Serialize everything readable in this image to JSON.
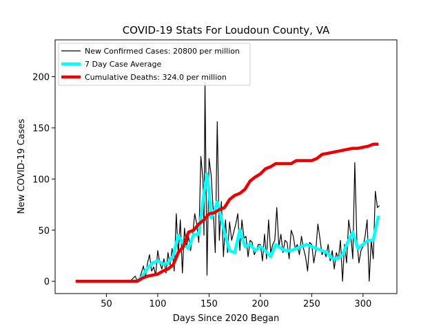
{
  "chart_data": {
    "type": "line",
    "title": "COVID-19 Stats For Loudoun County, VA",
    "xlabel": "Days Since 2020 Began",
    "ylabel": "New COVID-19 Cases",
    "xlim": [
      0,
      333
    ],
    "ylim": [
      -12,
      236
    ],
    "xticks": [
      50,
      100,
      150,
      200,
      250,
      300
    ],
    "yticks": [
      0,
      50,
      100,
      150,
      200
    ],
    "grid": false,
    "legend_position": "top-left",
    "series": [
      {
        "name": "New Confirmed Cases: 20800 per million",
        "color": "#000000",
        "x": [
          20,
          40,
          60,
          70,
          74,
          76,
          78,
          80,
          82,
          84,
          86,
          88,
          90,
          92,
          94,
          96,
          98,
          100,
          102,
          104,
          106,
          108,
          110,
          112,
          114,
          116,
          118,
          120,
          122,
          124,
          126,
          128,
          130,
          132,
          134,
          136,
          138,
          140,
          142,
          144,
          145,
          146,
          148,
          150,
          152,
          154,
          156,
          158,
          160,
          162,
          164,
          166,
          168,
          170,
          172,
          174,
          176,
          178,
          180,
          182,
          184,
          186,
          188,
          190,
          192,
          194,
          196,
          198,
          200,
          202,
          204,
          206,
          208,
          210,
          212,
          214,
          216,
          218,
          220,
          222,
          224,
          226,
          228,
          230,
          232,
          234,
          236,
          238,
          240,
          242,
          244,
          246,
          248,
          250,
          252,
          254,
          256,
          258,
          260,
          262,
          264,
          266,
          268,
          270,
          272,
          274,
          276,
          278,
          280,
          282,
          284,
          286,
          288,
          290,
          292,
          294,
          296,
          298,
          300,
          302,
          304,
          306,
          308,
          310,
          312,
          314,
          316
        ],
        "y": [
          0,
          0,
          0,
          0,
          1,
          3,
          5,
          0,
          2,
          8,
          15,
          4,
          18,
          26,
          10,
          14,
          6,
          30,
          18,
          12,
          22,
          8,
          28,
          16,
          32,
          10,
          66,
          26,
          60,
          8,
          52,
          34,
          44,
          30,
          46,
          66,
          56,
          38,
          122,
          100,
          45,
          195,
          6,
          120,
          104,
          70,
          28,
          156,
          40,
          78,
          24,
          60,
          28,
          58,
          40,
          48,
          56,
          66,
          30,
          60,
          42,
          44,
          24,
          40,
          38,
          26,
          30,
          36,
          36,
          20,
          46,
          22,
          60,
          28,
          36,
          40,
          72,
          34,
          46,
          28,
          40,
          38,
          22,
          50,
          44,
          32,
          36,
          26,
          44,
          32,
          24,
          10,
          38,
          36,
          18,
          30,
          56,
          42,
          26,
          30,
          24,
          36,
          20,
          30,
          12,
          28,
          22,
          40,
          0,
          36,
          18,
          60,
          46,
          22,
          116,
          40,
          18,
          30,
          34,
          44,
          60,
          0,
          40,
          22,
          88,
          72,
          74
        ],
        "line_width": 1.2
      },
      {
        "name": "7 Day Case Average",
        "color": "#00ffff",
        "x": [
          80,
          85,
          90,
          95,
          100,
          105,
          110,
          115,
          120,
          125,
          130,
          135,
          140,
          145,
          148,
          150,
          152,
          155,
          158,
          160,
          165,
          170,
          175,
          180,
          185,
          190,
          195,
          200,
          205,
          210,
          215,
          220,
          225,
          230,
          235,
          240,
          245,
          250,
          255,
          260,
          265,
          270,
          275,
          280,
          285,
          290,
          295,
          300,
          305,
          310,
          315
        ],
        "y": [
          0,
          5,
          13,
          18,
          20,
          17,
          18,
          25,
          45,
          36,
          32,
          46,
          46,
          86,
          105,
          88,
          62,
          68,
          78,
          70,
          48,
          30,
          28,
          50,
          34,
          36,
          30,
          34,
          30,
          24,
          36,
          32,
          30,
          30,
          32,
          34,
          36,
          34,
          32,
          30,
          28,
          22,
          22,
          26,
          38,
          48,
          32,
          36,
          40,
          40,
          64
        ],
        "line_width": 4.5
      },
      {
        "name": "Cumulative Deaths: 324.0 per million",
        "color": "#ee0000",
        "x": [
          20,
          40,
          60,
          70,
          80,
          85,
          90,
          95,
          100,
          105,
          110,
          115,
          120,
          125,
          130,
          135,
          140,
          145,
          150,
          155,
          160,
          165,
          170,
          175,
          180,
          185,
          190,
          195,
          200,
          205,
          210,
          215,
          220,
          225,
          230,
          235,
          240,
          245,
          250,
          255,
          260,
          265,
          270,
          275,
          280,
          285,
          290,
          295,
          300,
          305,
          310,
          315
        ],
        "y": [
          0,
          0,
          0,
          0,
          0,
          3,
          5,
          6,
          7,
          10,
          12,
          16,
          28,
          34,
          48,
          50,
          56,
          60,
          66,
          67,
          70,
          72,
          80,
          84,
          86,
          90,
          98,
          102,
          105,
          110,
          112,
          115,
          115,
          115,
          115,
          118,
          118,
          118,
          118,
          120,
          124,
          125,
          126,
          127,
          128,
          129,
          130,
          130,
          131,
          132,
          134,
          134
        ],
        "line_width": 4.5
      }
    ]
  }
}
